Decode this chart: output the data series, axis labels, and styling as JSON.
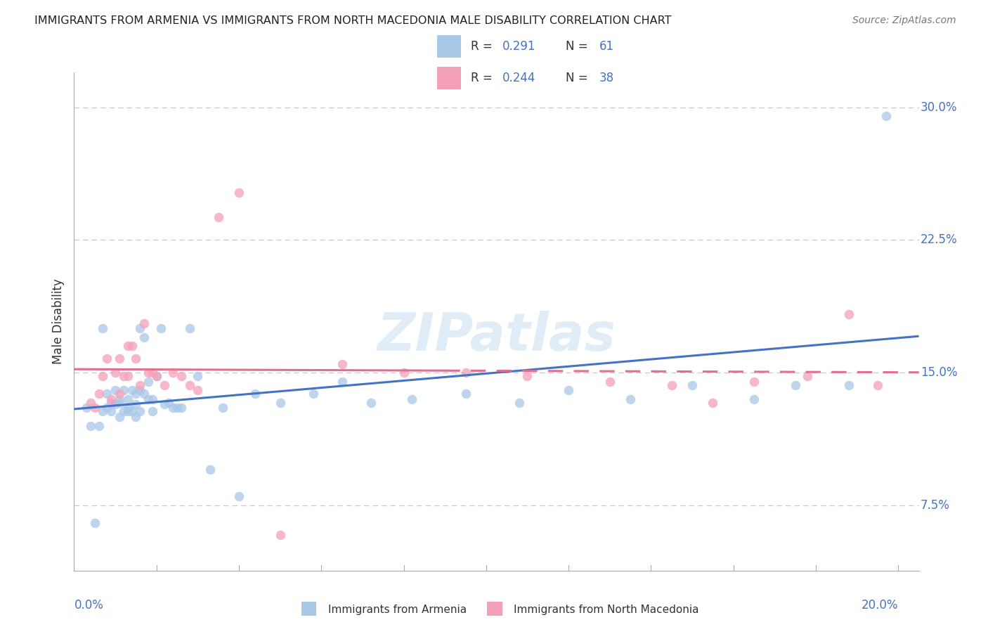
{
  "title": "IMMIGRANTS FROM ARMENIA VS IMMIGRANTS FROM NORTH MACEDONIA MALE DISABILITY CORRELATION CHART",
  "source": "Source: ZipAtlas.com",
  "ylabel": "Male Disability",
  "xlim": [
    0.0,
    0.205
  ],
  "ylim": [
    0.038,
    0.32
  ],
  "yticks": [
    0.075,
    0.15,
    0.225,
    0.3
  ],
  "ytick_labels": [
    "7.5%",
    "15.0%",
    "22.5%",
    "30.0%"
  ],
  "xtick_left": "0.0%",
  "xtick_right": "20.0%",
  "legend_r1": "0.291",
  "legend_n1": "61",
  "legend_r2": "0.244",
  "legend_n2": "38",
  "color_armenia": "#a8c8e8",
  "color_macedonia": "#f4a0b8",
  "color_line_armenia": "#4472c4",
  "color_line_macedonia": "#e07090",
  "color_text_blue": "#4472c4",
  "color_grid": "#c8c8d0",
  "label_armenia": "Immigrants from Armenia",
  "label_macedonia": "Immigrants from North Macedonia",
  "armenia_x": [
    0.003,
    0.004,
    0.005,
    0.006,
    0.007,
    0.007,
    0.008,
    0.008,
    0.009,
    0.009,
    0.01,
    0.01,
    0.011,
    0.011,
    0.011,
    0.012,
    0.012,
    0.013,
    0.013,
    0.013,
    0.014,
    0.014,
    0.015,
    0.015,
    0.015,
    0.016,
    0.016,
    0.016,
    0.017,
    0.017,
    0.018,
    0.018,
    0.019,
    0.019,
    0.02,
    0.021,
    0.022,
    0.023,
    0.024,
    0.025,
    0.026,
    0.028,
    0.03,
    0.033,
    0.036,
    0.04,
    0.044,
    0.05,
    0.058,
    0.065,
    0.072,
    0.082,
    0.095,
    0.108,
    0.12,
    0.135,
    0.15,
    0.165,
    0.175,
    0.188,
    0.197
  ],
  "armenia_y": [
    0.13,
    0.12,
    0.065,
    0.12,
    0.128,
    0.175,
    0.13,
    0.138,
    0.133,
    0.128,
    0.132,
    0.14,
    0.135,
    0.133,
    0.125,
    0.128,
    0.14,
    0.135,
    0.13,
    0.128,
    0.14,
    0.128,
    0.132,
    0.138,
    0.125,
    0.175,
    0.14,
    0.128,
    0.17,
    0.138,
    0.145,
    0.135,
    0.135,
    0.128,
    0.148,
    0.175,
    0.132,
    0.133,
    0.13,
    0.13,
    0.13,
    0.175,
    0.148,
    0.095,
    0.13,
    0.08,
    0.138,
    0.133,
    0.138,
    0.145,
    0.133,
    0.135,
    0.138,
    0.133,
    0.14,
    0.135,
    0.143,
    0.135,
    0.143,
    0.143,
    0.295
  ],
  "macedonia_x": [
    0.004,
    0.005,
    0.006,
    0.007,
    0.008,
    0.009,
    0.01,
    0.011,
    0.011,
    0.012,
    0.013,
    0.013,
    0.014,
    0.015,
    0.016,
    0.017,
    0.018,
    0.019,
    0.02,
    0.022,
    0.024,
    0.026,
    0.028,
    0.03,
    0.035,
    0.04,
    0.05,
    0.065,
    0.08,
    0.095,
    0.11,
    0.13,
    0.145,
    0.155,
    0.165,
    0.178,
    0.188,
    0.195
  ],
  "macedonia_y": [
    0.133,
    0.13,
    0.138,
    0.148,
    0.158,
    0.135,
    0.15,
    0.138,
    0.158,
    0.148,
    0.165,
    0.148,
    0.165,
    0.158,
    0.143,
    0.178,
    0.15,
    0.15,
    0.148,
    0.143,
    0.15,
    0.148,
    0.143,
    0.14,
    0.238,
    0.252,
    0.058,
    0.155,
    0.15,
    0.15,
    0.148,
    0.145,
    0.143,
    0.133,
    0.145,
    0.148,
    0.183,
    0.143
  ]
}
